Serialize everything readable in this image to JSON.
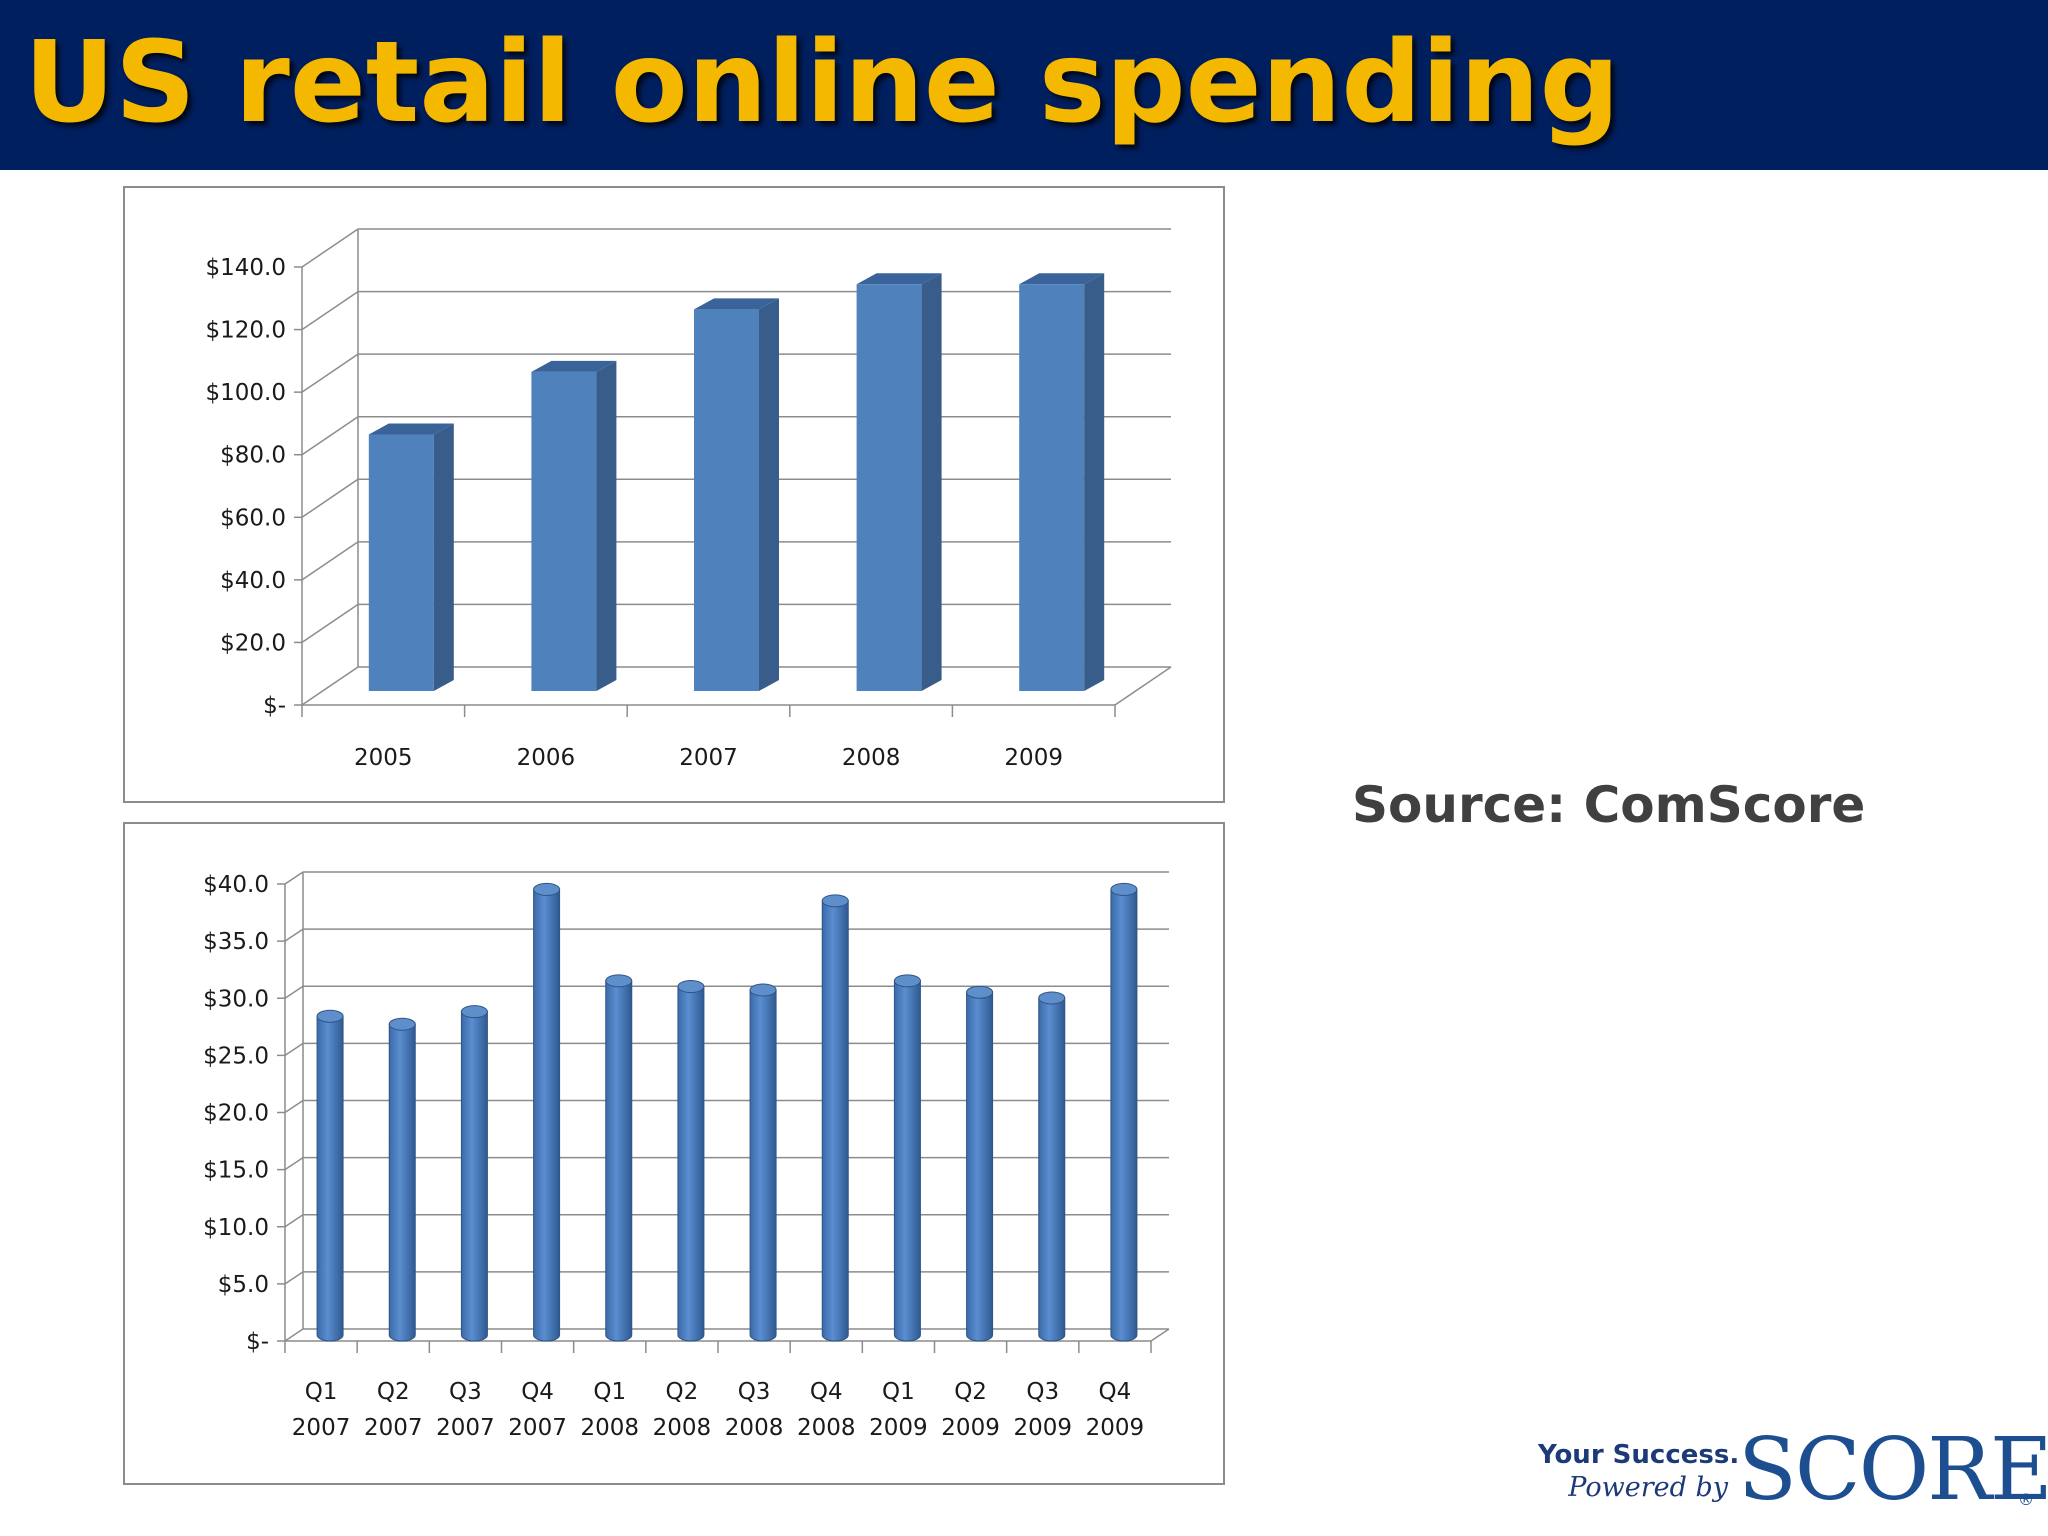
{
  "slide": {
    "title": "US retail online spending",
    "source": "Source: ComScore",
    "logo": {
      "tagline": "Your Success.",
      "powered_by": "Powered by",
      "brand": "SCORE",
      "registered_mark": "®"
    }
  },
  "colors": {
    "title_bar": "#001f5f",
    "title_text": "#f5b800",
    "bar_front": "#4f81bd",
    "bar_side": "#385d8a",
    "bar_top": "#3a6399",
    "gridline": "#8c8c8c"
  },
  "chart_data": [
    {
      "type": "bar",
      "categories": [
        "2005",
        "2006",
        "2007",
        "2008",
        "2009"
      ],
      "values": [
        82,
        102,
        122,
        130,
        130
      ],
      "ylim": [
        0,
        140
      ],
      "yticks": [
        0,
        20,
        40,
        60,
        80,
        100,
        120,
        140
      ],
      "ytick_labels": [
        "$-",
        "$20.0",
        "$40.0",
        "$60.0",
        "$80.0",
        "$100.0",
        "$120.0",
        "$140.0"
      ],
      "grid": true,
      "legend": "none",
      "style": "3d-column"
    },
    {
      "type": "bar",
      "categories": [
        [
          "Q1",
          "2007"
        ],
        [
          "Q2",
          "2007"
        ],
        [
          "Q3",
          "2007"
        ],
        [
          "Q4",
          "2007"
        ],
        [
          "Q1",
          "2008"
        ],
        [
          "Q2",
          "2008"
        ],
        [
          "Q3",
          "2008"
        ],
        [
          "Q4",
          "2008"
        ],
        [
          "Q1",
          "2009"
        ],
        [
          "Q2",
          "2009"
        ],
        [
          "Q3",
          "2009"
        ],
        [
          "Q4",
          "2009"
        ]
      ],
      "values": [
        27.9,
        27.2,
        28.3,
        39.0,
        31.0,
        30.5,
        30.2,
        38.0,
        31.0,
        30.0,
        29.5,
        39.0
      ],
      "ylim": [
        0,
        40
      ],
      "yticks": [
        0,
        5,
        10,
        15,
        20,
        25,
        30,
        35,
        40
      ],
      "ytick_labels": [
        "$-",
        "$5.0",
        "$10.0",
        "$15.0",
        "$20.0",
        "$25.0",
        "$30.0",
        "$35.0",
        "$40.0"
      ],
      "grid": true,
      "legend": "none",
      "style": "3d-cylinder"
    }
  ]
}
